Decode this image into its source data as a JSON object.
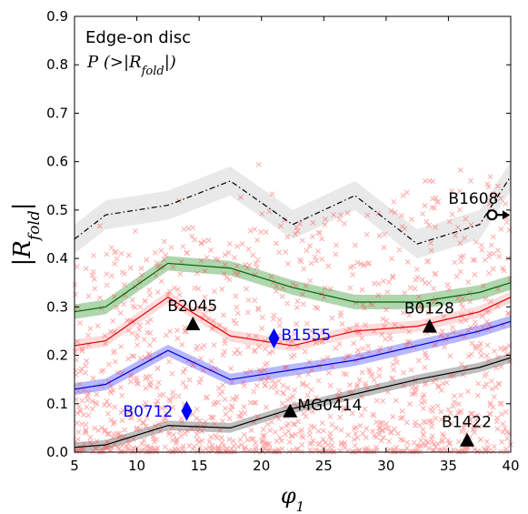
{
  "chart_data": {
    "type": "line",
    "title": "Edge-on disc",
    "subtitle": "P (>|R_fold|)",
    "xlabel": "φ1",
    "ylabel": "|R_fold|",
    "xlim": [
      5,
      40
    ],
    "ylim": [
      0,
      0.9
    ],
    "xticks": [
      5,
      10,
      15,
      20,
      25,
      30,
      35,
      40
    ],
    "yticks": [
      0.0,
      0.1,
      0.2,
      0.3,
      0.4,
      0.5,
      0.6,
      0.7,
      0.8,
      0.9
    ],
    "grid": false,
    "series": [
      {
        "style": "dash-dot",
        "color": "#000000",
        "band_color": "#bfbfbf",
        "x": [
          5,
          7.5,
          12.5,
          17.5,
          22.5,
          27.5,
          32.5,
          37.5,
          40
        ],
        "values": [
          0.44,
          0.49,
          0.51,
          0.56,
          0.47,
          0.53,
          0.43,
          0.47,
          0.57
        ],
        "band_halfwidth": 0.03
      },
      {
        "style": "solid",
        "color": "#006600",
        "band_color": "#1a8a1a",
        "x": [
          5,
          7.5,
          12.5,
          17.5,
          22.5,
          27.5,
          32.5,
          37.5,
          40
        ],
        "values": [
          0.29,
          0.3,
          0.39,
          0.38,
          0.34,
          0.31,
          0.31,
          0.33,
          0.35
        ],
        "band_halfwidth": 0.015
      },
      {
        "style": "solid",
        "color": "#dd0000",
        "band_color": "#ff9999",
        "x": [
          5,
          7.5,
          12.5,
          17.5,
          22.5,
          27.5,
          32.5,
          37.5,
          40
        ],
        "values": [
          0.22,
          0.23,
          0.32,
          0.24,
          0.22,
          0.25,
          0.26,
          0.29,
          0.32
        ],
        "band_halfwidth": 0.012
      },
      {
        "style": "solid",
        "color": "#0000dd",
        "band_color": "#3333ff",
        "x": [
          5,
          7.5,
          12.5,
          17.5,
          22.5,
          27.5,
          32.5,
          37.5,
          40
        ],
        "values": [
          0.13,
          0.14,
          0.21,
          0.15,
          0.17,
          0.19,
          0.22,
          0.25,
          0.27
        ],
        "band_halfwidth": 0.012
      },
      {
        "style": "solid",
        "color": "#000000",
        "band_color": "#444444",
        "x": [
          5,
          7.5,
          12.5,
          17.5,
          22.5,
          27.5,
          32.5,
          37.5,
          40
        ],
        "values": [
          0.01,
          0.015,
          0.055,
          0.05,
          0.09,
          0.12,
          0.15,
          0.175,
          0.195
        ],
        "band_halfwidth": 0.01
      }
    ],
    "scatter": {
      "marker": "x",
      "color": "#ff3333",
      "count": 1400
    },
    "annotations": [
      {
        "label": "B1608",
        "x": 38.5,
        "y": 0.49,
        "marker": "circle-arrow",
        "color": "#000000"
      },
      {
        "label": "B2045",
        "x": 14.5,
        "y": 0.265,
        "marker": "triangle",
        "color": "#000000"
      },
      {
        "label": "B0128",
        "x": 33.5,
        "y": 0.26,
        "marker": "triangle",
        "color": "#000000"
      },
      {
        "label": "B1555",
        "x": 21.0,
        "y": 0.235,
        "marker": "diamond",
        "color": "#0000ff"
      },
      {
        "label": "B0712",
        "x": 14.0,
        "y": 0.085,
        "marker": "diamond",
        "color": "#0000ff"
      },
      {
        "label": "MG0414",
        "x": 22.3,
        "y": 0.085,
        "marker": "triangle",
        "color": "#000000"
      },
      {
        "label": "B1422",
        "x": 36.5,
        "y": 0.025,
        "marker": "triangle",
        "color": "#000000"
      }
    ]
  }
}
